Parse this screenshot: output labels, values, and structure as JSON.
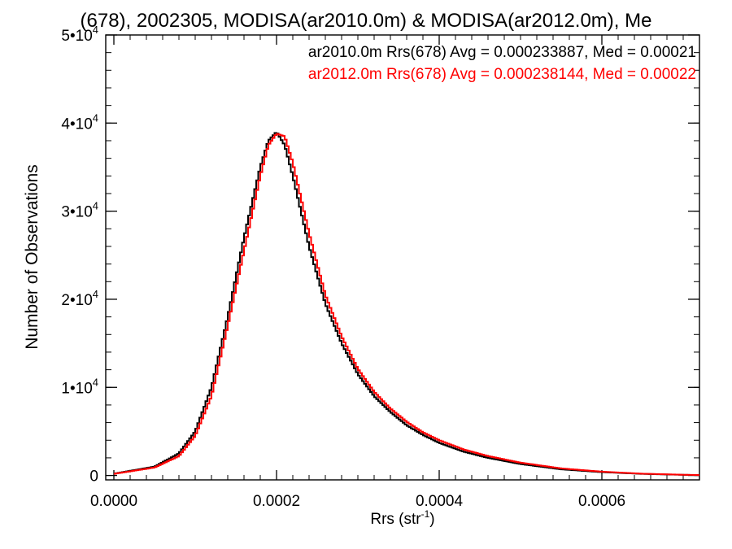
{
  "chart_data": {
    "type": "line",
    "title": "(678), 2002305, MODISA(ar2010.0m) & MODISA(ar2012.0m), Me",
    "xlabel": "Rrs (str",
    "xlabel_sup": "-1",
    "xlabel_tail": ")",
    "ylabel": "Number of Observations",
    "xlim": [
      -1e-05,
      0.00072
    ],
    "ylim": [
      -500,
      50000
    ],
    "x_ticks": [
      0,
      0.0002,
      0.0004,
      0.0006
    ],
    "x_tick_labels": [
      "0.0000",
      "0.0002",
      "0.0004",
      "0.0006"
    ],
    "y_ticks": [
      0,
      10000,
      20000,
      30000,
      40000,
      50000
    ],
    "y_tick_labels": [
      {
        "base": "0",
        "exp": ""
      },
      {
        "base": "1•10",
        "exp": "4"
      },
      {
        "base": "2•10",
        "exp": "4"
      },
      {
        "base": "3•10",
        "exp": "4"
      },
      {
        "base": "4•10",
        "exp": "4"
      },
      {
        "base": "5•10",
        "exp": "4"
      }
    ],
    "grid": false,
    "legend_position": "top-right",
    "series": [
      {
        "name": "ar2010.0m Rrs(678) Avg = 0.000233887, Med = 0.00021",
        "color": "#000000",
        "x": [
          0.0,
          5e-05,
          8e-05,
          0.0001,
          0.00012,
          0.00014,
          0.00016,
          0.00018,
          0.00019,
          0.0002,
          0.00021,
          0.00022,
          0.00024,
          0.00026,
          0.00028,
          0.0003,
          0.00032,
          0.00034,
          0.00036,
          0.00038,
          0.0004,
          0.00043,
          0.00046,
          0.0005,
          0.00055,
          0.0006,
          0.00065,
          0.0007,
          0.00072
        ],
        "y": [
          200,
          1000,
          2500,
          5000,
          10000,
          18000,
          27000,
          35000,
          38000,
          39000,
          37500,
          34000,
          26000,
          19500,
          15000,
          11500,
          9000,
          7200,
          5700,
          4600,
          3700,
          2700,
          2000,
          1300,
          700,
          380,
          180,
          70,
          40
        ]
      },
      {
        "name": "ar2012.0m Rrs(678) Avg = 0.000238144, Med = 0.00022",
        "color": "#ff0000",
        "x": [
          0.0,
          5e-05,
          8e-05,
          0.0001,
          0.00012,
          0.00014,
          0.00016,
          0.00018,
          0.00019,
          0.0002,
          0.00021,
          0.00022,
          0.00024,
          0.00026,
          0.00028,
          0.0003,
          0.00032,
          0.00034,
          0.00036,
          0.00038,
          0.0004,
          0.00043,
          0.00046,
          0.0005,
          0.00055,
          0.0006,
          0.00065,
          0.0007,
          0.00072
        ],
        "y": [
          180,
          900,
          2200,
          4500,
          9000,
          17000,
          25500,
          34000,
          37500,
          38800,
          38500,
          35500,
          27500,
          20500,
          15800,
          12100,
          9500,
          7600,
          6100,
          4900,
          4000,
          2950,
          2200,
          1450,
          800,
          430,
          200,
          80,
          45
        ]
      }
    ]
  }
}
